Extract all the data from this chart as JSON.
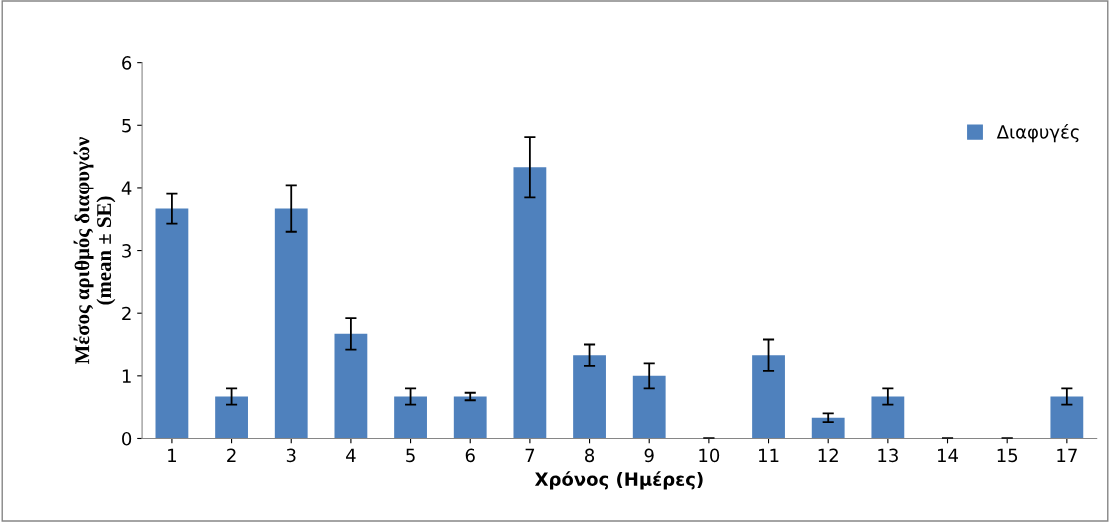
{
  "chart_data": {
    "type": "bar",
    "xlabel": "Χρόνος (Ημέρες)",
    "ylabel": "Μέσος αριθμός διαφυγών\n(mean ± SE)",
    "categories": [
      "1",
      "2",
      "3",
      "4",
      "5",
      "6",
      "7",
      "8",
      "9",
      "10",
      "11",
      "12",
      "13",
      "14",
      "15",
      "17"
    ],
    "series": [
      {
        "name": "Διαφυγές",
        "color": "#4f81bd",
        "values": [
          3.67,
          0.67,
          3.67,
          1.67,
          0.67,
          0.67,
          4.33,
          1.33,
          1.0,
          0,
          1.33,
          0.33,
          0.67,
          0,
          0,
          0.67
        ],
        "errors": [
          0.24,
          0.13,
          0.37,
          0.25,
          0.13,
          0.06,
          0.48,
          0.17,
          0.2,
          0,
          0.25,
          0.07,
          0.13,
          0,
          0,
          0.13
        ]
      }
    ],
    "ylim": [
      0,
      6
    ],
    "yticks": [
      0,
      1,
      2,
      3,
      4,
      5,
      6
    ],
    "grid": false,
    "legend": "top right"
  }
}
